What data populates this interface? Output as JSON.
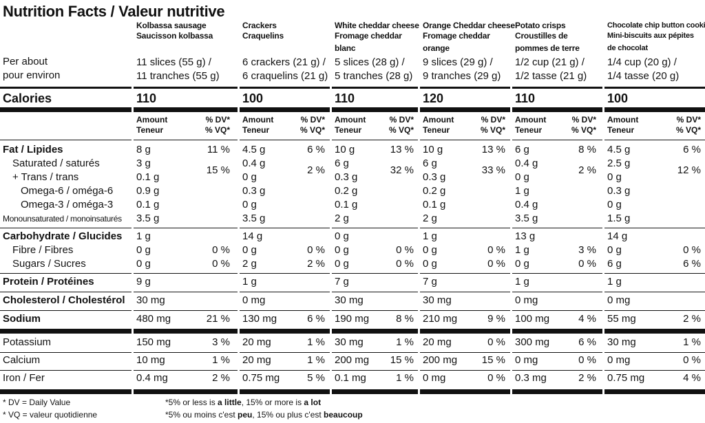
{
  "title": "Nutrition Facts / Valeur nutritive",
  "per_label": [
    "Per about",
    "pour environ"
  ],
  "calories_label": "Calories",
  "header_amount": [
    "Amount",
    "Teneur"
  ],
  "header_dv": [
    "% DV*",
    "% VQ*"
  ],
  "nutrients": {
    "fat": "Fat / Lipides",
    "sat": "Saturated / saturés",
    "trans": "+ Trans / trans",
    "omega6": "Omega-6 / oméga-6",
    "omega3": "Omega-3 / oméga-3",
    "mono": "Monounsaturated / monoinsaturés",
    "carb": "Carbohydrate / Glucides",
    "fibre": "Fibre / Fibres",
    "sugars": "Sugars / Sucres",
    "protein": "Protein / Protéines",
    "cholesterol": "Cholesterol / Cholestérol",
    "sodium": "Sodium",
    "potassium": "Potassium",
    "calcium": "Calcium",
    "iron": "Iron / Fer"
  },
  "products": [
    {
      "name": [
        "Kolbassa sausage",
        "Saucisson kolbassa"
      ],
      "serving": [
        "11 slices (55 g) /",
        "11 tranches (55 g)"
      ],
      "calories": "110",
      "fat": "8 g",
      "fat_dv": "11 %",
      "sat": "3 g",
      "trans": "0.1 g",
      "sat_trans_dv": "15 %",
      "omega6": "0.9 g",
      "omega3": "0.1 g",
      "mono": "3.5 g",
      "carb": "1 g",
      "fibre": "0 g",
      "fibre_dv": "0 %",
      "sugars": "0 g",
      "sugars_dv": "0 %",
      "protein": "9 g",
      "cholesterol": "30 mg",
      "sodium": "480 mg",
      "sodium_dv": "21 %",
      "potassium": "150 mg",
      "potassium_dv": "3 %",
      "calcium": "10 mg",
      "calcium_dv": "1 %",
      "iron": "0.4 mg",
      "iron_dv": "2 %"
    },
    {
      "name": [
        "Crackers",
        "Craquelins"
      ],
      "serving": [
        "6 crackers (21 g) /",
        "6 craquelins (21 g)"
      ],
      "calories": "100",
      "fat": "4.5 g",
      "fat_dv": "6 %",
      "sat": "0.4 g",
      "trans": "0 g",
      "sat_trans_dv": "2 %",
      "omega6": "0.3 g",
      "omega3": "0 g",
      "mono": "3.5 g",
      "carb": "14 g",
      "fibre": "0 g",
      "fibre_dv": "0 %",
      "sugars": "2 g",
      "sugars_dv": "2 %",
      "protein": "1 g",
      "cholesterol": "0 mg",
      "sodium": "130 mg",
      "sodium_dv": "6 %",
      "potassium": "20 mg",
      "potassium_dv": "1 %",
      "calcium": "20 mg",
      "calcium_dv": "1 %",
      "iron": "0.75 mg",
      "iron_dv": "5 %"
    },
    {
      "name": [
        "White cheddar cheese",
        "Fromage cheddar",
        "blanc"
      ],
      "serving": [
        "5 slices (28 g) /",
        "5 tranches (28 g)"
      ],
      "calories": "110",
      "fat": "10 g",
      "fat_dv": "13 %",
      "sat": "6 g",
      "trans": "0.3 g",
      "sat_trans_dv": "32 %",
      "omega6": "0.2 g",
      "omega3": "0.1 g",
      "mono": "2 g",
      "carb": "0 g",
      "fibre": "0 g",
      "fibre_dv": "0 %",
      "sugars": "0 g",
      "sugars_dv": "0 %",
      "protein": "7 g",
      "cholesterol": "30 mg",
      "sodium": "190 mg",
      "sodium_dv": "8 %",
      "potassium": "30 mg",
      "potassium_dv": "1 %",
      "calcium": "200 mg",
      "calcium_dv": "15 %",
      "iron": "0.1 mg",
      "iron_dv": "1 %"
    },
    {
      "name": [
        "Orange Cheddar cheese",
        "Fromage cheddar",
        "orange"
      ],
      "serving": [
        "9 slices (29 g) /",
        "9 tranches (29 g)"
      ],
      "calories": "120",
      "fat": "10 g",
      "fat_dv": "13 %",
      "sat": "6 g",
      "trans": "0.3 g",
      "sat_trans_dv": "33 %",
      "omega6": "0.2 g",
      "omega3": "0.1 g",
      "mono": "2 g",
      "carb": "1 g",
      "fibre": "0 g",
      "fibre_dv": "0 %",
      "sugars": "0 g",
      "sugars_dv": "0 %",
      "protein": "7 g",
      "cholesterol": "30 mg",
      "sodium": "210 mg",
      "sodium_dv": "9 %",
      "potassium": "20 mg",
      "potassium_dv": "0 %",
      "calcium": "200 mg",
      "calcium_dv": "15 %",
      "iron": "0 mg",
      "iron_dv": "0 %"
    },
    {
      "name": [
        "Potato crisps",
        "Croustilles de",
        "pommes de terre"
      ],
      "serving": [
        "1/2 cup (21 g) /",
        "1/2 tasse (21 g)"
      ],
      "calories": "110",
      "fat": "6 g",
      "fat_dv": "8 %",
      "sat": "0.4 g",
      "trans": "0 g",
      "sat_trans_dv": "2 %",
      "omega6": "1 g",
      "omega3": "0.4 g",
      "mono": "3.5 g",
      "carb": "13 g",
      "fibre": "1 g",
      "fibre_dv": "3 %",
      "sugars": "0 g",
      "sugars_dv": "0 %",
      "protein": "1 g",
      "cholesterol": "0 mg",
      "sodium": "100 mg",
      "sodium_dv": "4 %",
      "potassium": "300 mg",
      "potassium_dv": "6 %",
      "calcium": "0 mg",
      "calcium_dv": "0 %",
      "iron": "0.3 mg",
      "iron_dv": "2 %"
    },
    {
      "name": [
        "Chocolate chip button cookies",
        "Mini-biscuits aux pépites",
        "de chocolat"
      ],
      "serving": [
        "1/4 cup (20 g) /",
        "1/4 tasse (20 g)"
      ],
      "calories": "100",
      "fat": "4.5 g",
      "fat_dv": "6 %",
      "sat": "2.5 g",
      "trans": "0 g",
      "sat_trans_dv": "12 %",
      "omega6": "0.3 g",
      "omega3": "0 g",
      "mono": "1.5 g",
      "carb": "14 g",
      "fibre": "0 g",
      "fibre_dv": "0 %",
      "sugars": "6 g",
      "sugars_dv": "6 %",
      "protein": "1 g",
      "cholesterol": "0 mg",
      "sodium": "55 mg",
      "sodium_dv": "2 %",
      "potassium": "30 mg",
      "potassium_dv": "1 %",
      "calcium": "0 mg",
      "calcium_dv": "0 %",
      "iron": "0.75 mg",
      "iron_dv": "4 %"
    }
  ],
  "footnotes": {
    "dv_en": "* DV = Daily Value",
    "dv_fr": "* VQ = valeur quotidienne",
    "rule_en_pre": "*5% or less is ",
    "rule_en_b1": "a little",
    "rule_en_mid": ", 15% or more is ",
    "rule_en_b2": "a lot",
    "rule_fr_pre": "*5% ou moins c'est ",
    "rule_fr_b1": "peu",
    "rule_fr_mid": ", 15% ou plus c'est ",
    "rule_fr_b2": "beaucoup"
  }
}
